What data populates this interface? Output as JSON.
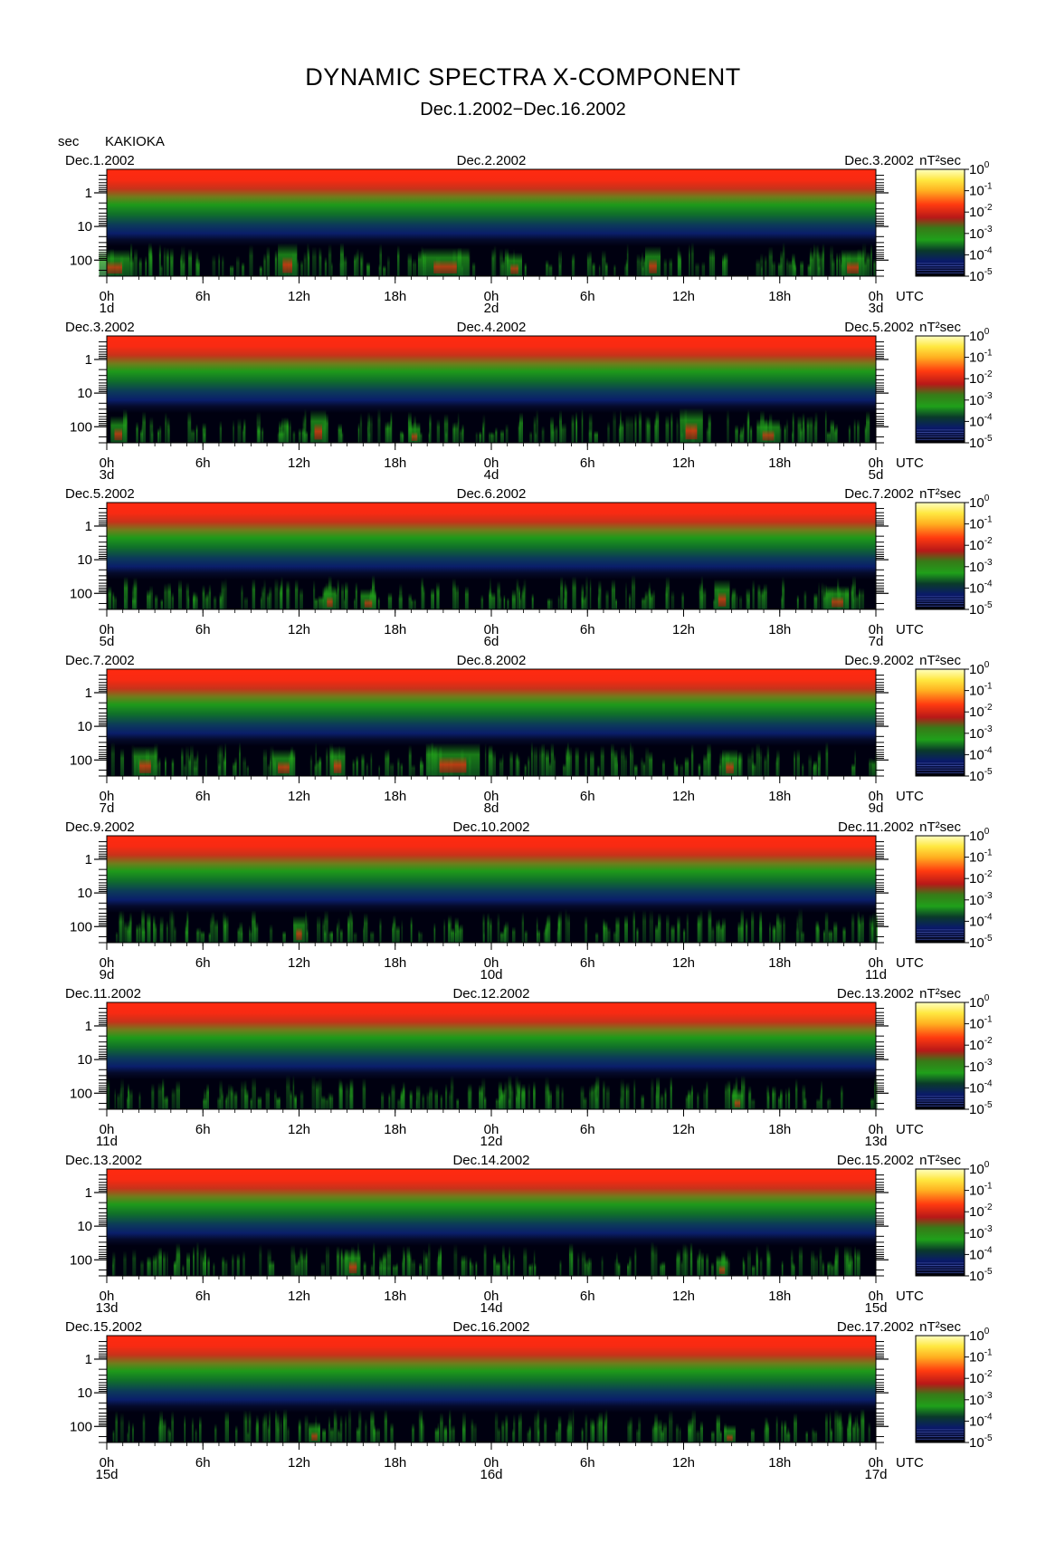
{
  "header": {
    "title": "DYNAMIC SPECTRA X-COMPONENT",
    "subtitle": "Dec.1.2002−Dec.16.2002",
    "y_unit": "sec",
    "station": "KAKIOKA"
  },
  "chart_data": {
    "type": "heatmap",
    "title": "DYNAMIC SPECTRA X-COMPONENT",
    "subtitle": "Dec.1.2002−Dec.16.2002",
    "station": "KAKIOKA",
    "ylabel": "sec",
    "xlabel": "UTC",
    "y_ticks": [
      "1",
      "10",
      "100"
    ],
    "y_scale": "log",
    "x_ticks": [
      "0h",
      "6h",
      "12h",
      "18h",
      "0h",
      "6h",
      "12h",
      "18h",
      "0h"
    ],
    "colorbar": {
      "unit": "nT²sec",
      "base": "10",
      "exponents": [
        "0",
        "-1",
        "-2",
        "-3",
        "-4",
        "-5"
      ],
      "scale": "log"
    },
    "colors": {
      "high": "#ff2a10",
      "mid": "#1f9a1a",
      "low": "#0a1760",
      "background": "#000010"
    },
    "panels": [
      {
        "left_date": "Dec.1.2002",
        "mid_date": "Dec.2.2002",
        "right_date": "Dec.3.2002",
        "day_labels": [
          "1d",
          "2d",
          "3d"
        ],
        "events": [
          [
            0.01,
            0.04,
            0.7
          ],
          [
            0.235,
            0.025,
            0.9
          ],
          [
            0.44,
            0.06,
            0.75
          ],
          [
            0.53,
            0.02,
            0.6
          ],
          [
            0.71,
            0.02,
            0.8
          ],
          [
            0.97,
            0.03,
            0.7
          ]
        ]
      },
      {
        "left_date": "Dec.3.2002",
        "mid_date": "Dec.4.2002",
        "right_date": "Dec.5.2002",
        "day_labels": [
          "3d",
          "4d",
          "5d"
        ],
        "events": [
          [
            0.015,
            0.02,
            0.7
          ],
          [
            0.275,
            0.02,
            0.9
          ],
          [
            0.4,
            0.015,
            0.5
          ],
          [
            0.76,
            0.03,
            0.95
          ],
          [
            0.86,
            0.03,
            0.6
          ]
        ]
      },
      {
        "left_date": "Dec.5.2002",
        "mid_date": "Dec.6.2002",
        "right_date": "Dec.7.2002",
        "day_labels": [
          "5d",
          "6d",
          "7d"
        ],
        "events": [
          [
            0.29,
            0.015,
            0.6
          ],
          [
            0.34,
            0.02,
            0.5
          ],
          [
            0.8,
            0.02,
            0.8
          ],
          [
            0.95,
            0.03,
            0.6
          ]
        ]
      },
      {
        "left_date": "Dec.7.2002",
        "mid_date": "Dec.8.2002",
        "right_date": "Dec.9.2002",
        "day_labels": [
          "7d",
          "8d",
          "9d"
        ],
        "events": [
          [
            0.05,
            0.03,
            0.8
          ],
          [
            0.23,
            0.03,
            0.7
          ],
          [
            0.3,
            0.02,
            0.8
          ],
          [
            0.45,
            0.07,
            0.9
          ],
          [
            0.81,
            0.02,
            0.7
          ]
        ]
      },
      {
        "left_date": "Dec.9.2002",
        "mid_date": "Dec.10.2002",
        "right_date": "Dec.11.2002",
        "day_labels": [
          "9d",
          "10d",
          "11d"
        ],
        "events": [
          [
            0.25,
            0.015,
            0.7
          ]
        ]
      },
      {
        "left_date": "Dec.11.2002",
        "mid_date": "Dec.12.2002",
        "right_date": "Dec.13.2002",
        "day_labels": [
          "11d",
          "12d",
          "13d"
        ],
        "events": [
          [
            0.82,
            0.015,
            0.5
          ]
        ]
      },
      {
        "left_date": "Dec.13.2002",
        "mid_date": "Dec.14.2002",
        "right_date": "Dec.15.2002",
        "day_labels": [
          "13d",
          "14d",
          "15d"
        ],
        "events": [
          [
            0.32,
            0.02,
            0.7
          ],
          [
            0.8,
            0.015,
            0.5
          ]
        ]
      },
      {
        "left_date": "Dec.15.2002",
        "mid_date": "Dec.16.2002",
        "right_date": "Dec.17.2002",
        "day_labels": [
          "15d",
          "16d",
          "17d"
        ],
        "events": [
          [
            0.27,
            0.015,
            0.5
          ],
          [
            0.81,
            0.015,
            0.4
          ]
        ]
      }
    ]
  }
}
